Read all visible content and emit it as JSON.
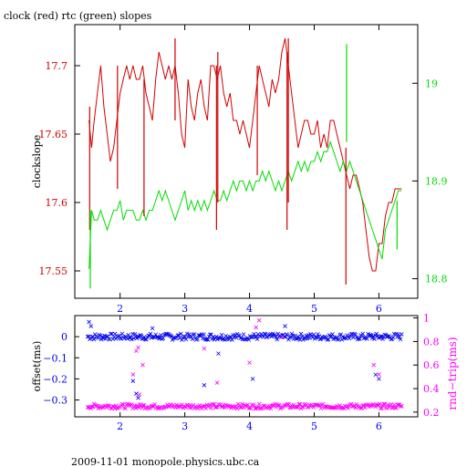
{
  "title": "clock (red) rtc (green) slopes",
  "footer": "2009-11-01 monopole.physics.ubc.ca",
  "colors": {
    "red": "#d00000",
    "green": "#00dd00",
    "blue": "#0000ee",
    "magenta": "#ff00ff",
    "axis": "#000000"
  },
  "chart_data": [
    {
      "type": "line",
      "title": "clock (red) rtc (green) slopes",
      "ylabel": "clockslope",
      "xlim": [
        1.3,
        6.6
      ],
      "ylim_left": [
        17.53,
        17.73
      ],
      "ylim_right": [
        18.78,
        19.06
      ],
      "xticks": [
        2,
        3,
        4,
        5,
        6
      ],
      "yticks_left": [
        17.55,
        17.6,
        17.65,
        17.7
      ],
      "yticks_left_labels": [
        "17.55",
        "17.6",
        "17.65",
        "17.7"
      ],
      "yticks_right": [
        18.8,
        18.9,
        19.0
      ],
      "yticks_right_labels": [
        "18.8",
        "18.9",
        "19"
      ],
      "series": [
        {
          "name": "clock",
          "axis": "left",
          "color": "#d00000",
          "x": [
            1.52,
            1.56,
            1.6,
            1.65,
            1.7,
            1.75,
            1.8,
            1.85,
            1.9,
            1.95,
            2.0,
            2.05,
            2.1,
            2.15,
            2.2,
            2.25,
            2.3,
            2.35,
            2.4,
            2.45,
            2.5,
            2.55,
            2.6,
            2.65,
            2.7,
            2.75,
            2.8,
            2.85,
            2.9,
            2.95,
            3.0,
            3.05,
            3.1,
            3.15,
            3.2,
            3.25,
            3.3,
            3.35,
            3.4,
            3.45,
            3.5,
            3.55,
            3.6,
            3.65,
            3.7,
            3.75,
            3.8,
            3.85,
            3.9,
            3.95,
            4.0,
            4.05,
            4.1,
            4.15,
            4.2,
            4.25,
            4.3,
            4.35,
            4.4,
            4.45,
            4.5,
            4.55,
            4.6,
            4.65,
            4.7,
            4.75,
            4.8,
            4.85,
            4.9,
            4.95,
            5.0,
            5.05,
            5.1,
            5.15,
            5.2,
            5.25,
            5.3,
            5.35,
            5.4,
            5.45,
            5.5,
            5.55,
            5.6,
            5.65,
            5.7,
            5.75,
            5.8,
            5.85,
            5.9,
            5.95,
            6.0,
            6.05,
            6.1,
            6.15,
            6.2,
            6.25,
            6.3,
            6.35
          ],
          "y": [
            17.66,
            17.64,
            17.66,
            17.68,
            17.7,
            17.67,
            17.65,
            17.63,
            17.64,
            17.66,
            17.68,
            17.69,
            17.7,
            17.69,
            17.7,
            17.69,
            17.69,
            17.7,
            17.68,
            17.67,
            17.66,
            17.69,
            17.71,
            17.7,
            17.69,
            17.7,
            17.69,
            17.7,
            17.68,
            17.65,
            17.64,
            17.69,
            17.67,
            17.66,
            17.68,
            17.69,
            17.67,
            17.66,
            17.7,
            17.7,
            17.69,
            17.7,
            17.68,
            17.67,
            17.68,
            17.66,
            17.66,
            17.65,
            17.66,
            17.65,
            17.64,
            17.66,
            17.68,
            17.7,
            17.69,
            17.68,
            17.67,
            17.69,
            17.68,
            17.69,
            17.71,
            17.72,
            17.7,
            17.68,
            17.66,
            17.64,
            17.65,
            17.66,
            17.66,
            17.65,
            17.65,
            17.66,
            17.64,
            17.65,
            17.64,
            17.66,
            17.66,
            17.65,
            17.64,
            17.63,
            17.62,
            17.61,
            17.62,
            17.62,
            17.61,
            17.6,
            17.58,
            17.56,
            17.55,
            17.55,
            17.57,
            17.57,
            17.59,
            17.6,
            17.6,
            17.61,
            17.61,
            17.61
          ]
        },
        {
          "name": "rtc",
          "axis": "right",
          "color": "#00dd00",
          "x": [
            1.52,
            1.56,
            1.6,
            1.65,
            1.7,
            1.75,
            1.8,
            1.85,
            1.9,
            1.95,
            2.0,
            2.05,
            2.1,
            2.15,
            2.2,
            2.25,
            2.3,
            2.35,
            2.4,
            2.45,
            2.5,
            2.55,
            2.6,
            2.65,
            2.7,
            2.75,
            2.8,
            2.85,
            2.9,
            2.95,
            3.0,
            3.05,
            3.1,
            3.15,
            3.2,
            3.25,
            3.3,
            3.35,
            3.4,
            3.45,
            3.5,
            3.55,
            3.6,
            3.65,
            3.7,
            3.75,
            3.8,
            3.85,
            3.9,
            3.95,
            4.0,
            4.05,
            4.1,
            4.15,
            4.2,
            4.25,
            4.3,
            4.35,
            4.4,
            4.45,
            4.5,
            4.55,
            4.6,
            4.65,
            4.7,
            4.75,
            4.8,
            4.85,
            4.9,
            4.95,
            5.0,
            5.05,
            5.1,
            5.15,
            5.2,
            5.25,
            5.3,
            5.35,
            5.4,
            5.45,
            5.5,
            5.55,
            5.6,
            5.65,
            5.7,
            5.75,
            5.8,
            5.85,
            5.9,
            5.95,
            6.0,
            6.05,
            6.1,
            6.15,
            6.2,
            6.25,
            6.3,
            6.35
          ],
          "y": [
            18.81,
            18.87,
            18.86,
            18.86,
            18.87,
            18.86,
            18.85,
            18.86,
            18.87,
            18.87,
            18.88,
            18.86,
            18.87,
            18.87,
            18.87,
            18.86,
            18.86,
            18.87,
            18.86,
            18.87,
            18.87,
            18.88,
            18.89,
            18.88,
            18.89,
            18.88,
            18.87,
            18.86,
            18.87,
            18.88,
            18.89,
            18.87,
            18.88,
            18.87,
            18.88,
            18.87,
            18.88,
            18.87,
            18.88,
            18.89,
            18.88,
            18.88,
            18.89,
            18.88,
            18.89,
            18.9,
            18.89,
            18.9,
            18.9,
            18.89,
            18.9,
            18.89,
            18.9,
            18.9,
            18.91,
            18.9,
            18.91,
            18.9,
            18.89,
            18.9,
            18.89,
            18.9,
            18.91,
            18.9,
            18.91,
            18.92,
            18.91,
            18.92,
            18.91,
            18.92,
            18.92,
            18.93,
            18.92,
            18.93,
            18.93,
            18.94,
            18.93,
            18.92,
            18.91,
            18.92,
            18.91,
            18.92,
            18.91,
            18.9,
            18.89,
            18.88,
            18.87,
            18.86,
            18.85,
            18.84,
            18.83,
            18.82,
            18.85,
            18.86,
            18.87,
            18.88,
            18.89,
            18.89
          ]
        }
      ],
      "spikes": [
        {
          "series": "clock",
          "x": 1.53,
          "from": 17.58,
          "to": 17.67
        },
        {
          "series": "clock",
          "x": 1.96,
          "from": 17.61,
          "to": 17.7
        },
        {
          "series": "clock",
          "x": 2.37,
          "from": 17.59,
          "to": 17.69
        },
        {
          "series": "clock",
          "x": 2.85,
          "from": 17.66,
          "to": 17.72
        },
        {
          "series": "clock",
          "x": 3.49,
          "from": 17.58,
          "to": 17.7
        },
        {
          "series": "clock",
          "x": 3.51,
          "from": 17.6,
          "to": 17.71
        },
        {
          "series": "clock",
          "x": 4.12,
          "from": 17.62,
          "to": 17.7
        },
        {
          "series": "clock",
          "x": 4.58,
          "from": 17.58,
          "to": 17.71
        },
        {
          "series": "clock",
          "x": 4.6,
          "from": 17.6,
          "to": 17.72
        },
        {
          "series": "clock",
          "x": 5.49,
          "from": 17.54,
          "to": 17.64
        },
        {
          "series": "rtc",
          "x": 1.54,
          "from": 18.79,
          "to": 18.87
        },
        {
          "series": "rtc",
          "x": 5.5,
          "from": 18.94,
          "to": 19.04
        },
        {
          "series": "rtc",
          "x": 6.28,
          "from": 18.83,
          "to": 18.88
        }
      ]
    },
    {
      "type": "scatter",
      "ylabel_left": "offset(ms)",
      "ylabel_right": "rnd−trip(ms)",
      "xlim": [
        1.3,
        6.6
      ],
      "ylim_left": [
        -0.38,
        0.1
      ],
      "ylim_right": [
        0.16,
        1.02
      ],
      "xticks": [
        2,
        3,
        4,
        5,
        6
      ],
      "yticks_left": [
        0,
        -0.1,
        -0.2,
        -0.3
      ],
      "yticks_left_labels": [
        "0",
        "−0.1",
        "−0.2",
        "−0.3"
      ],
      "yticks_right": [
        0.2,
        0.4,
        0.6,
        0.8,
        1.0
      ],
      "yticks_right_labels": [
        "0.2",
        "0.4",
        "0.6",
        "0.8",
        "1"
      ],
      "series": [
        {
          "name": "offset",
          "axis": "left",
          "color": "#0000ee",
          "x_range": [
            1.5,
            6.35
          ],
          "baseline": 0.0,
          "outliers": [
            {
              "x": 1.52,
              "y": 0.07
            },
            {
              "x": 1.55,
              "y": 0.05
            },
            {
              "x": 2.25,
              "y": -0.27
            },
            {
              "x": 2.28,
              "y": -0.29
            },
            {
              "x": 2.2,
              "y": -0.21
            },
            {
              "x": 3.3,
              "y": -0.23
            },
            {
              "x": 3.52,
              "y": -0.08
            },
            {
              "x": 4.05,
              "y": -0.2
            },
            {
              "x": 5.95,
              "y": -0.18
            },
            {
              "x": 6.0,
              "y": -0.2
            },
            {
              "x": 2.5,
              "y": 0.04
            },
            {
              "x": 4.55,
              "y": 0.05
            }
          ]
        },
        {
          "name": "rnd-trip",
          "axis": "right",
          "color": "#ff00ff",
          "x_range": [
            1.5,
            6.35
          ],
          "baseline": 0.25,
          "outliers": [
            {
              "x": 2.25,
              "y": 0.72
            },
            {
              "x": 2.28,
              "y": 0.75
            },
            {
              "x": 2.35,
              "y": 0.6
            },
            {
              "x": 2.2,
              "y": 0.52
            },
            {
              "x": 2.3,
              "y": 0.35
            },
            {
              "x": 3.3,
              "y": 0.74
            },
            {
              "x": 3.5,
              "y": 0.45
            },
            {
              "x": 4.0,
              "y": 0.62
            },
            {
              "x": 4.15,
              "y": 0.98
            },
            {
              "x": 4.5,
              "y": 0.84
            },
            {
              "x": 5.92,
              "y": 0.6
            },
            {
              "x": 6.0,
              "y": 0.52
            },
            {
              "x": 4.1,
              "y": 0.92
            }
          ]
        }
      ]
    }
  ]
}
